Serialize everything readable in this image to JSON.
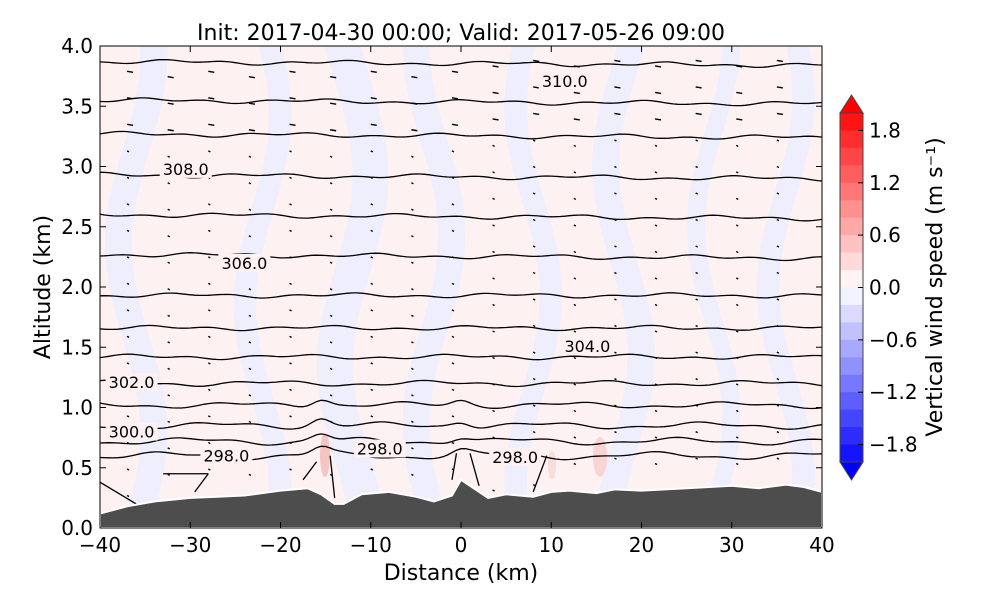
{
  "chart_data": {
    "type": "heatmap",
    "title": "Init: 2017-04-30 00:00; Valid: 2017-05-26 09:00",
    "xlabel": "Distance (km)",
    "ylabel": "Altitude (km)",
    "xlim": [
      -40,
      40
    ],
    "ylim": [
      0,
      4
    ],
    "xticks": [
      "−40",
      "−30",
      "−20",
      "−10",
      "0",
      "10",
      "20",
      "30",
      "40"
    ],
    "yticks": [
      "0.0",
      "0.5",
      "1.0",
      "1.5",
      "2.0",
      "2.5",
      "3.0",
      "3.5",
      "4.0"
    ],
    "colorbar": {
      "label": "Vertical wind speed (m s⁻¹)",
      "range": [
        -2.0,
        2.0
      ],
      "ticks": [
        "1.8",
        "1.2",
        "0.6",
        "0.0",
        "−0.6",
        "−1.2",
        "−1.8"
      ],
      "min_color": "#0000ff",
      "max_color": "#ff0000"
    },
    "terrain": {
      "color": "#4d4d4d",
      "x": [
        -40,
        -37,
        -34,
        -30,
        -27,
        -24,
        -20,
        -17,
        -15.5,
        -14,
        -13,
        -11,
        -8,
        -5,
        -3,
        -1,
        0,
        1,
        3,
        5,
        8,
        10,
        12,
        15,
        17,
        20,
        25,
        30,
        33,
        36,
        38,
        40
      ],
      "height_km": [
        0.12,
        0.18,
        0.22,
        0.25,
        0.26,
        0.27,
        0.31,
        0.33,
        0.28,
        0.2,
        0.2,
        0.28,
        0.3,
        0.26,
        0.22,
        0.27,
        0.4,
        0.35,
        0.25,
        0.28,
        0.26,
        0.3,
        0.31,
        0.29,
        0.32,
        0.31,
        0.33,
        0.35,
        0.33,
        0.36,
        0.34,
        0.3
      ]
    },
    "contour_altitudes_km": [
      3.87,
      3.55,
      3.27,
      2.93,
      2.6,
      2.27,
      1.93,
      1.66,
      1.42,
      1.2,
      1.02,
      0.85,
      0.72,
      0.6
    ],
    "contour_labels": [
      {
        "text": "310.0",
        "x": 11.5,
        "y": 3.71
      },
      {
        "text": "308.0",
        "x": -30.5,
        "y": 2.98
      },
      {
        "text": "306.0",
        "x": -24,
        "y": 2.2
      },
      {
        "text": "304.0",
        "x": 14,
        "y": 1.51
      },
      {
        "text": "302.0",
        "x": -36.5,
        "y": 1.21
      },
      {
        "text": "300.0",
        "x": -36.5,
        "y": 0.8
      },
      {
        "text": "298.0",
        "x": -26,
        "y": 0.6
      },
      {
        "text": "298.0",
        "x": -9,
        "y": 0.66
      },
      {
        "text": "298.0",
        "x": 6,
        "y": 0.59
      }
    ]
  }
}
